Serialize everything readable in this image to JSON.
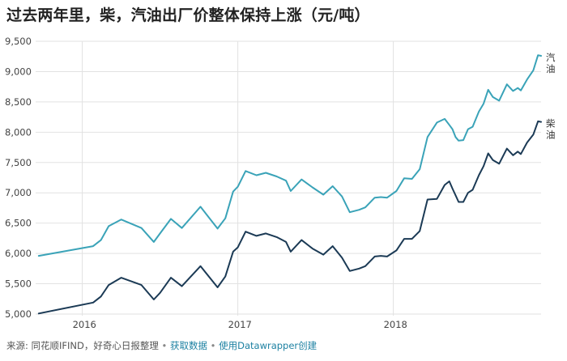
{
  "title": "过去两年里，柴，汽油出厂价整体保持上涨（元/吨）",
  "footer": {
    "source_label": "来源:",
    "source_text": "同花顺IFIND，好奇心日报整理",
    "bullet": "•",
    "link_get_data": "获取数据",
    "link_made_with": "使用Datawrapper创建"
  },
  "chart_data": {
    "type": "line",
    "title": "过去两年里，柴，汽油出厂价整体保持上涨（元/吨）",
    "ylim": [
      5000,
      9500
    ],
    "xlim": [
      2015.7,
      2018.85
    ],
    "y_ticks": [
      5000,
      5500,
      6000,
      6500,
      7000,
      7500,
      8000,
      8500,
      9000,
      9500
    ],
    "y_tick_labels": [
      "5,000",
      "5,500",
      "6,000",
      "6,500",
      "7,000",
      "7,500",
      "8,000",
      "8,500",
      "9,000",
      "9,500"
    ],
    "x_ticks": [
      2016,
      2017,
      2018
    ],
    "x_tick_labels": [
      "2016",
      "2017",
      "2018"
    ],
    "grid": true,
    "series": [
      {
        "name": "汽油",
        "color": "#3aa3b8",
        "x": [
          2015.72,
          2016.07,
          2016.12,
          2016.17,
          2016.25,
          2016.38,
          2016.46,
          2016.5,
          2016.57,
          2016.64,
          2016.76,
          2016.87,
          2016.92,
          2016.97,
          2017.0,
          2017.05,
          2017.12,
          2017.18,
          2017.25,
          2017.31,
          2017.34,
          2017.41,
          2017.48,
          2017.55,
          2017.61,
          2017.67,
          2017.72,
          2017.78,
          2017.82,
          2017.88,
          2017.92,
          2017.96,
          2018.02,
          2018.07,
          2018.12,
          2018.17,
          2018.22,
          2018.28,
          2018.33,
          2018.36,
          2018.38,
          2018.4,
          2018.42,
          2018.45,
          2018.48,
          2018.51,
          2018.55,
          2018.58,
          2018.61,
          2018.64,
          2018.68,
          2018.73,
          2018.77,
          2018.8,
          2018.82
        ],
        "values": [
          5960,
          6120,
          6220,
          6450,
          6560,
          6420,
          6190,
          6330,
          6570,
          6420,
          6770,
          6410,
          6580,
          7020,
          7100,
          7360,
          7290,
          7330,
          7270,
          7200,
          7030,
          7220,
          7090,
          6970,
          7110,
          6940,
          6680,
          6720,
          6760,
          6920,
          6930,
          6920,
          7030,
          7240,
          7230,
          7390,
          7920,
          8160,
          8220,
          8120,
          8050,
          7920,
          7860,
          7870,
          8050,
          8090,
          8340,
          8470,
          8700,
          8580,
          8520,
          8790,
          8680,
          8730,
          8690
        ]
      },
      {
        "name": "柴油",
        "color": "#1b3a55",
        "x": [
          2015.72,
          2016.07,
          2016.12,
          2016.17,
          2016.25,
          2016.38,
          2016.46,
          2016.5,
          2016.57,
          2016.64,
          2016.76,
          2016.87,
          2016.92,
          2016.97,
          2017.0,
          2017.05,
          2017.12,
          2017.18,
          2017.25,
          2017.31,
          2017.34,
          2017.41,
          2017.48,
          2017.55,
          2017.61,
          2017.67,
          2017.72,
          2017.78,
          2017.82,
          2017.88,
          2017.92,
          2017.96,
          2018.02,
          2018.07,
          2018.12,
          2018.17,
          2018.22,
          2018.28,
          2018.33,
          2018.36,
          2018.38,
          2018.4,
          2018.42,
          2018.45,
          2018.48,
          2018.51,
          2018.55,
          2018.58,
          2018.61,
          2018.64,
          2018.68,
          2018.73,
          2018.77,
          2018.8,
          2018.82
        ],
        "values": [
          5010,
          5190,
          5290,
          5480,
          5600,
          5480,
          5240,
          5350,
          5600,
          5460,
          5790,
          5440,
          5620,
          6030,
          6100,
          6360,
          6290,
          6330,
          6270,
          6190,
          6030,
          6220,
          6080,
          5980,
          6120,
          5930,
          5710,
          5750,
          5790,
          5950,
          5960,
          5950,
          6050,
          6240,
          6240,
          6370,
          6890,
          6900,
          7130,
          7190,
          7070,
          6960,
          6850,
          6850,
          7000,
          7050,
          7290,
          7440,
          7650,
          7540,
          7480,
          7730,
          7620,
          7680,
          7640
        ]
      }
    ],
    "tail": {
      "汽油": {
        "x": [
          2018.82,
          2018.86,
          2018.9,
          2018.93,
          2018.95
        ],
        "values": [
          8690,
          8870,
          9020,
          9270,
          9260
        ]
      },
      "柴油": {
        "x": [
          2018.82,
          2018.86,
          2018.9,
          2018.93,
          2018.95
        ],
        "values": [
          7640,
          7830,
          7960,
          8180,
          8170
        ]
      }
    }
  }
}
